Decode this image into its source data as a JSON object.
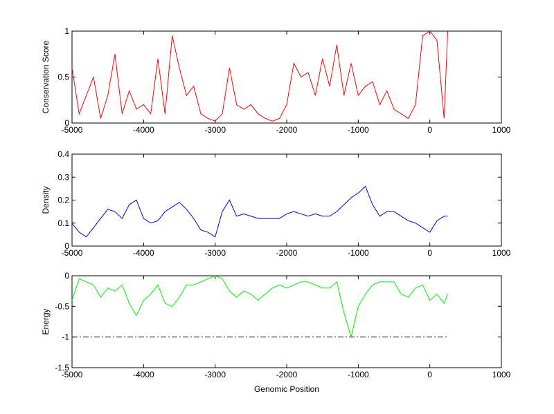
{
  "chart_data": [
    {
      "type": "line",
      "ylabel": "Conservation Score",
      "x": [
        -5000,
        -4900,
        -4800,
        -4700,
        -4600,
        -4500,
        -4400,
        -4300,
        -4200,
        -4100,
        -4000,
        -3900,
        -3800,
        -3700,
        -3600,
        -3500,
        -3400,
        -3300,
        -3200,
        -3100,
        -3000,
        -2900,
        -2800,
        -2700,
        -2600,
        -2500,
        -2400,
        -2300,
        -2200,
        -2100,
        -2000,
        -1900,
        -1800,
        -1700,
        -1600,
        -1500,
        -1400,
        -1300,
        -1200,
        -1100,
        -1000,
        -900,
        -800,
        -700,
        -600,
        -500,
        -400,
        -300,
        -200,
        -100,
        0,
        100,
        200,
        250
      ],
      "series": [
        {
          "name": null,
          "color": "#ff0000",
          "values": [
            0.6,
            0.1,
            0.3,
            0.5,
            0.05,
            0.3,
            0.75,
            0.1,
            0.35,
            0.15,
            0.2,
            0.1,
            0.7,
            0.1,
            0.95,
            0.6,
            0.3,
            0.4,
            0.1,
            0.05,
            0.02,
            0.1,
            0.6,
            0.2,
            0.15,
            0.2,
            0.1,
            0.05,
            0.02,
            0.05,
            0.2,
            0.65,
            0.5,
            0.55,
            0.3,
            0.7,
            0.4,
            0.85,
            0.3,
            0.65,
            0.3,
            0.4,
            0.45,
            0.2,
            0.35,
            0.15,
            0.1,
            0.05,
            0.2,
            0.95,
            1,
            0.9,
            0.05,
            1
          ]
        }
      ],
      "xlim": [
        -5000,
        1000
      ],
      "xticks": [
        -5000,
        -4000,
        -3000,
        -2000,
        -1000,
        0,
        1000
      ],
      "ylim": [
        0,
        1
      ],
      "yticks": [
        0,
        0.5,
        1
      ]
    },
    {
      "type": "line",
      "ylabel": "Density",
      "x": [
        -5000,
        -4900,
        -4800,
        -4700,
        -4600,
        -4500,
        -4400,
        -4300,
        -4200,
        -4100,
        -4000,
        -3900,
        -3800,
        -3700,
        -3600,
        -3500,
        -3400,
        -3300,
        -3200,
        -3100,
        -3000,
        -2900,
        -2800,
        -2700,
        -2600,
        -2500,
        -2400,
        -2300,
        -2200,
        -2100,
        -2000,
        -1900,
        -1800,
        -1700,
        -1600,
        -1500,
        -1400,
        -1300,
        -1200,
        -1100,
        -1000,
        -900,
        -800,
        -700,
        -600,
        -500,
        -400,
        -300,
        -200,
        -100,
        0,
        100,
        200,
        250
      ],
      "series": [
        {
          "name": null,
          "color": "#0000cc",
          "values": [
            0.1,
            0.06,
            0.04,
            0.08,
            0.12,
            0.16,
            0.15,
            0.12,
            0.18,
            0.2,
            0.12,
            0.1,
            0.11,
            0.15,
            0.17,
            0.19,
            0.16,
            0.12,
            0.07,
            0.06,
            0.04,
            0.15,
            0.2,
            0.13,
            0.14,
            0.13,
            0.12,
            0.12,
            0.12,
            0.12,
            0.14,
            0.15,
            0.14,
            0.13,
            0.14,
            0.13,
            0.13,
            0.15,
            0.18,
            0.21,
            0.23,
            0.26,
            0.18,
            0.13,
            0.15,
            0.15,
            0.13,
            0.11,
            0.1,
            0.08,
            0.06,
            0.11,
            0.13,
            0.13
          ]
        }
      ],
      "xlim": [
        -5000,
        1000
      ],
      "xticks": [
        -5000,
        -4000,
        -3000,
        -2000,
        -1000,
        0,
        1000
      ],
      "ylim": [
        0,
        0.4
      ],
      "yticks": [
        0,
        0.1,
        0.2,
        0.3,
        0.4
      ]
    },
    {
      "type": "line",
      "ylabel": "Energy",
      "xlabel": "Genomic Position",
      "x": [
        -5000,
        -4900,
        -4800,
        -4700,
        -4600,
        -4500,
        -4400,
        -4300,
        -4200,
        -4100,
        -4000,
        -3900,
        -3800,
        -3700,
        -3600,
        -3500,
        -3400,
        -3300,
        -3200,
        -3100,
        -3000,
        -2900,
        -2800,
        -2700,
        -2600,
        -2500,
        -2400,
        -2300,
        -2200,
        -2100,
        -2000,
        -1900,
        -1800,
        -1700,
        -1600,
        -1500,
        -1400,
        -1300,
        -1200,
        -1100,
        -1000,
        -900,
        -800,
        -700,
        -600,
        -500,
        -400,
        -300,
        -200,
        -100,
        0,
        100,
        200,
        250
      ],
      "series": [
        {
          "name": null,
          "color": "#00ee00",
          "values": [
            -0.4,
            -0.05,
            -0.1,
            -0.15,
            -0.35,
            -0.2,
            -0.25,
            -0.15,
            -0.45,
            -0.65,
            -0.4,
            -0.3,
            -0.15,
            -0.45,
            -0.5,
            -0.35,
            -0.15,
            -0.15,
            -0.1,
            -0.05,
            0,
            -0.05,
            -0.25,
            -0.35,
            -0.25,
            -0.3,
            -0.4,
            -0.3,
            -0.2,
            -0.15,
            -0.2,
            -0.15,
            -0.1,
            -0.1,
            -0.15,
            -0.2,
            -0.2,
            -0.1,
            -0.6,
            -1.0,
            -0.5,
            -0.3,
            -0.15,
            -0.1,
            -0.1,
            -0.1,
            -0.3,
            -0.35,
            -0.2,
            -0.15,
            -0.4,
            -0.3,
            -0.45,
            -0.3
          ]
        }
      ],
      "hline": {
        "value": -1,
        "from": -5000,
        "to": 250,
        "color": "#000000"
      },
      "xlim": [
        -5000,
        1000
      ],
      "xticks": [
        -5000,
        -4000,
        -3000,
        -2000,
        -1000,
        0,
        1000
      ],
      "ylim": [
        -1.5,
        0
      ],
      "yticks": [
        -1.5,
        -1,
        -0.5,
        0
      ]
    }
  ]
}
